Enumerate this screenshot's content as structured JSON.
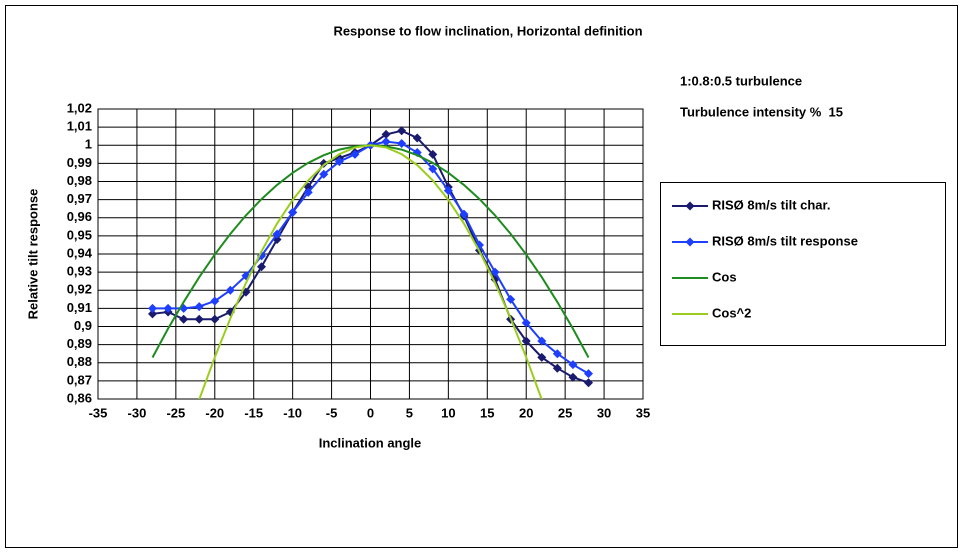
{
  "chart_data": {
    "type": "line",
    "title": "Response to flow inclination, Horizontal definition",
    "x_label": "Inclination angle",
    "y_label": "Relative tilt response",
    "annotations": [
      "1:0.8:0.5 turbulence",
      "Turbulence intensity %  15"
    ],
    "xlim": [
      -35,
      35
    ],
    "xticks": [
      -35,
      -30,
      -25,
      -20,
      -15,
      -10,
      -5,
      0,
      5,
      10,
      15,
      20,
      25,
      30,
      35
    ],
    "ylim": [
      0.86,
      1.02
    ],
    "yticks": [
      {
        "value": 0.86,
        "label": "0,86"
      },
      {
        "value": 0.87,
        "label": "0,87"
      },
      {
        "value": 0.88,
        "label": "0,88"
      },
      {
        "value": 0.89,
        "label": "0,89"
      },
      {
        "value": 0.9,
        "label": "0,9"
      },
      {
        "value": 0.91,
        "label": "0,91"
      },
      {
        "value": 0.92,
        "label": "0,92"
      },
      {
        "value": 0.93,
        "label": "0,93"
      },
      {
        "value": 0.94,
        "label": "0,94"
      },
      {
        "value": 0.95,
        "label": "0,95"
      },
      {
        "value": 0.96,
        "label": "0,96"
      },
      {
        "value": 0.97,
        "label": "0,97"
      },
      {
        "value": 0.98,
        "label": "0,98"
      },
      {
        "value": 0.99,
        "label": "0,99"
      },
      1,
      {
        "value": 1.01,
        "label": "1,01"
      },
      {
        "value": 1.02,
        "label": "1,02"
      }
    ],
    "grid": true,
    "legend": "right",
    "series": [
      {
        "name": "RISØ 8m/s tilt char.",
        "color": "#1a1a6e",
        "marker": "diamond",
        "x": [
          -28,
          -26,
          -24,
          -22,
          -20,
          -18,
          -16,
          -14,
          -12,
          -10,
          -8,
          -6,
          -4,
          -2,
          0,
          2,
          4,
          6,
          8,
          10,
          12,
          14,
          16,
          18,
          20,
          22,
          24,
          26,
          28
        ],
        "values": [
          0.907,
          0.908,
          0.904,
          0.904,
          0.904,
          0.908,
          0.919,
          0.933,
          0.948,
          0.963,
          0.977,
          0.99,
          0.993,
          0.996,
          1.0,
          1.006,
          1.008,
          1.004,
          0.995,
          0.977,
          0.961,
          0.942,
          0.926,
          0.904,
          0.892,
          0.883,
          0.877,
          0.872,
          0.869
        ]
      },
      {
        "name": "RISØ 8m/s tilt response",
        "color": "#1f3fff",
        "marker": "diamond",
        "x": [
          -28,
          -26,
          -24,
          -22,
          -20,
          -18,
          -16,
          -14,
          -12,
          -10,
          -8,
          -6,
          -4,
          -2,
          0,
          2,
          4,
          6,
          8,
          10,
          12,
          14,
          16,
          18,
          20,
          22,
          24,
          26,
          28
        ],
        "values": [
          0.91,
          0.91,
          0.91,
          0.911,
          0.914,
          0.92,
          0.928,
          0.939,
          0.951,
          0.963,
          0.974,
          0.984,
          0.991,
          0.995,
          1.0,
          1.002,
          1.001,
          0.996,
          0.987,
          0.975,
          0.962,
          0.945,
          0.93,
          0.915,
          0.902,
          0.892,
          0.885,
          0.879,
          0.874
        ]
      },
      {
        "name": "Cos",
        "color": "#1e8c1e",
        "marker": "none",
        "x": [
          -28,
          -26,
          -24,
          -22,
          -20,
          -18,
          -16,
          -14,
          -12,
          -10,
          -8,
          -6,
          -4,
          -2,
          0,
          2,
          4,
          6,
          8,
          10,
          12,
          14,
          16,
          18,
          20,
          22,
          24,
          26,
          28
        ],
        "values": [
          0.8829,
          0.8988,
          0.9135,
          0.9272,
          0.9397,
          0.9511,
          0.9613,
          0.9703,
          0.9781,
          0.9848,
          0.9903,
          0.9945,
          0.9976,
          0.9994,
          1,
          0.9994,
          0.9976,
          0.9945,
          0.9903,
          0.9848,
          0.9781,
          0.9703,
          0.9613,
          0.9511,
          0.9397,
          0.9272,
          0.9135,
          0.8988,
          0.8829
        ]
      },
      {
        "name": "Cos^2",
        "color": "#9acd1e",
        "marker": "none",
        "x": [
          -22,
          -20,
          -18,
          -16,
          -14,
          -12,
          -10,
          -8,
          -6,
          -4,
          -2,
          0,
          2,
          4,
          6,
          8,
          10,
          12,
          14,
          16,
          18,
          20,
          22
        ],
        "values": [
          0.8597,
          0.883,
          0.9045,
          0.924,
          0.9415,
          0.9568,
          0.9698,
          0.9806,
          0.9891,
          0.9951,
          0.9988,
          1,
          0.9988,
          0.9951,
          0.9891,
          0.9806,
          0.9698,
          0.9568,
          0.9415,
          0.924,
          0.9045,
          0.883,
          0.8597
        ]
      }
    ]
  }
}
